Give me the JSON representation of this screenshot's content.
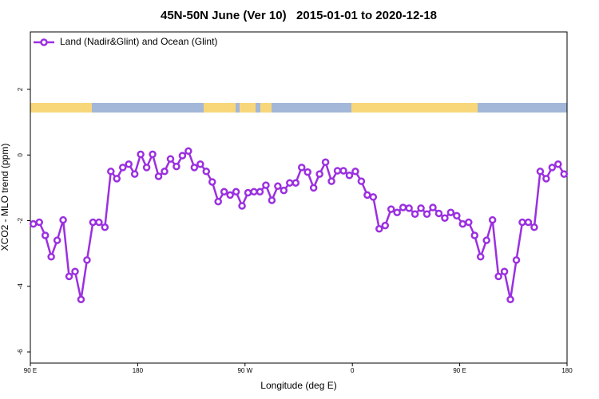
{
  "chart_data": {
    "type": "line",
    "title": "45N-50N June (Ver 10)   2015-01-01 to 2020-12-18",
    "x_label": "Longitude (deg E)",
    "y_label": "XCO2 - MLO trend (ppm)",
    "x": [
      92.5,
      97.5,
      102.5,
      107.5,
      112.5,
      117.5,
      122.5,
      127.5,
      132.5,
      137.5,
      142.5,
      147.5,
      152.5,
      157.5,
      162.5,
      167.5,
      172.5,
      177.5,
      182.5,
      187.5,
      192.5,
      197.5,
      202.5,
      207.5,
      212.5,
      217.5,
      222.5,
      227.5,
      232.5,
      237.5,
      242.5,
      247.5,
      252.5,
      257.5,
      262.5,
      267.5,
      272.5,
      277.5,
      282.5,
      287.5,
      292.5,
      297.5,
      302.5,
      307.5,
      312.5,
      317.5,
      322.5,
      327.5,
      332.5,
      337.5,
      342.5,
      347.5,
      352.5,
      357.5,
      362.5,
      367.5,
      372.5,
      377.5,
      382.5,
      387.5,
      392.5,
      397.5,
      402.5,
      407.5,
      412.5,
      417.5,
      422.5,
      427.5,
      432.5,
      437.5,
      442.5,
      447.5,
      452.5,
      457.5,
      462.5,
      467.5,
      472.5,
      477.5,
      482.5,
      487.5,
      492.5,
      497.5,
      502.5,
      507.5,
      512.5,
      517.5,
      522.5,
      527.5,
      532.5,
      537.5
    ],
    "series": [
      {
        "name": "Land (Nadir&Glint) and Ocean (Glint)",
        "color": "#9b30e0",
        "values": [
          -2.1,
          -2.05,
          -2.45,
          -3.1,
          -2.6,
          -1.98,
          -3.7,
          -3.55,
          -4.4,
          -3.2,
          -2.05,
          -2.05,
          -2.2,
          -0.5,
          -0.72,
          -0.38,
          -0.28,
          -0.58,
          0.02,
          -0.38,
          0.02,
          -0.65,
          -0.5,
          -0.12,
          -0.35,
          -0.02,
          0.12,
          -0.38,
          -0.28,
          -0.5,
          -0.82,
          -1.42,
          -1.12,
          -1.22,
          -1.12,
          -1.55,
          -1.15,
          -1.12,
          -1.12,
          -0.92,
          -1.38,
          -0.95,
          -1.08,
          -0.85,
          -0.85,
          -0.38,
          -0.52,
          -1.0,
          -0.58,
          -0.22,
          -0.8,
          -0.48,
          -0.48,
          -0.62,
          -0.5,
          -0.8,
          -1.22,
          -1.28,
          -2.25,
          -2.15,
          -1.65,
          -1.75,
          -1.6,
          -1.62,
          -1.8,
          -1.62,
          -1.8,
          -1.6,
          -1.78,
          -1.92,
          -1.75,
          -1.85,
          -2.1,
          -2.05,
          -2.45,
          -3.1,
          -2.6,
          -1.98,
          -3.7,
          -3.55,
          -4.4,
          -3.2,
          -2.05,
          -2.05,
          -2.2,
          -0.5,
          -0.72,
          -0.38,
          -0.28,
          -0.58
        ]
      }
    ],
    "xlim": [
      90,
      540
    ],
    "xticks": [
      {
        "value": 90,
        "label": "90 E"
      },
      180,
      {
        "value": 270,
        "label": "90 W"
      },
      {
        "value": 360,
        "label": "0"
      },
      {
        "value": 450,
        "label": "90 E"
      },
      {
        "value": 540,
        "label": "180"
      }
    ],
    "ylim": [
      -6.34,
      3.75
    ],
    "yticks": [
      -6,
      -4,
      -2,
      0,
      2
    ],
    "legend": "top-left"
  }
}
